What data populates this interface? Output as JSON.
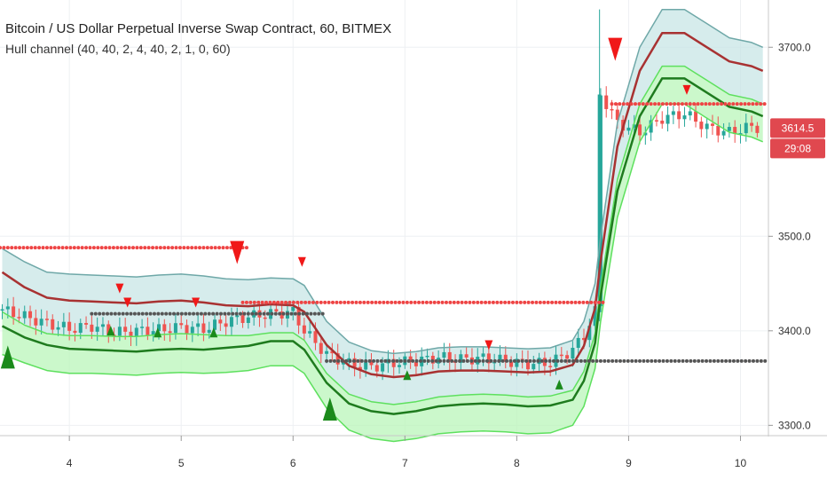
{
  "chart_data": {
    "type": "line",
    "title": "Bitcoin / US Dollar Perpetual Inverse Swap Contract, 60, BITMEX",
    "subtitle": "Hull channel (40, 40, 2, 4, 40, 2, 1, 0, 60)",
    "x_ticks": [
      "4",
      "5",
      "6",
      "7",
      "8",
      "9",
      "10"
    ],
    "y_ticks": [
      "3300.0",
      "3400.0",
      "3500.0",
      "3700.0"
    ],
    "ylim": [
      3290,
      3750
    ],
    "xlim": [
      3.38,
      10.25
    ],
    "last_price": "3614.5",
    "countdown": "29:08",
    "colors": {
      "bull": "#26a69a",
      "bear": "#ef5350",
      "upper_band": "#6fa8a8",
      "upper_fill": "#c8e6e6",
      "lower_band": "#5ee05e",
      "lower_fill": "#b9f5b9",
      "hull_up": "#1e7b1e",
      "hull_down": "#a83232",
      "signal_red": "#f01818",
      "signal_green": "#1b8a1b",
      "dots_red": "#ee4444",
      "dots_black": "#555555",
      "price_label": "#e0484f"
    },
    "x": [
      3.4,
      3.6,
      3.8,
      4.0,
      4.2,
      4.4,
      4.6,
      4.8,
      5.0,
      5.2,
      5.4,
      5.6,
      5.8,
      6.0,
      6.1,
      6.3,
      6.5,
      6.7,
      6.9,
      7.1,
      7.3,
      7.5,
      7.7,
      7.9,
      8.1,
      8.3,
      8.5,
      8.6,
      8.7,
      8.75,
      8.9,
      9.1,
      9.3,
      9.5,
      9.7,
      9.9,
      10.1,
      10.2
    ],
    "series": [
      {
        "name": "upper",
        "values": [
          3487,
          3473,
          3462,
          3460,
          3459,
          3458,
          3457,
          3459,
          3460,
          3458,
          3455,
          3454,
          3456,
          3455,
          3448,
          3410,
          3388,
          3379,
          3376,
          3378,
          3382,
          3383,
          3383,
          3382,
          3381,
          3382,
          3390,
          3410,
          3450,
          3500,
          3620,
          3700,
          3740,
          3740,
          3725,
          3710,
          3705,
          3700
        ]
      },
      {
        "name": "hull_upper",
        "values": [
          3462,
          3446,
          3435,
          3432,
          3431,
          3430,
          3429,
          3431,
          3432,
          3430,
          3427,
          3426,
          3428,
          3427,
          3420,
          3385,
          3363,
          3354,
          3351,
          3353,
          3357,
          3358,
          3358,
          3357,
          3356,
          3357,
          3364,
          3384,
          3424,
          3474,
          3595,
          3675,
          3715,
          3715,
          3700,
          3685,
          3680,
          3675
        ]
      },
      {
        "name": "middle",
        "values": [
          3420,
          3406,
          3397,
          3395,
          3395,
          3394,
          3394,
          3396,
          3397,
          3396,
          3395,
          3395,
          3398,
          3398,
          3390,
          3355,
          3333,
          3325,
          3322,
          3325,
          3330,
          3332,
          3333,
          3332,
          3330,
          3331,
          3337,
          3357,
          3397,
          3447,
          3560,
          3640,
          3680,
          3680,
          3665,
          3650,
          3645,
          3640
        ]
      },
      {
        "name": "hull_lower",
        "values": [
          3405,
          3393,
          3385,
          3381,
          3380,
          3379,
          3378,
          3380,
          3381,
          3380,
          3382,
          3384,
          3389,
          3389,
          3380,
          3345,
          3323,
          3315,
          3312,
          3315,
          3320,
          3322,
          3323,
          3322,
          3320,
          3321,
          3327,
          3347,
          3387,
          3437,
          3548,
          3627,
          3667,
          3667,
          3652,
          3637,
          3632,
          3627
        ]
      },
      {
        "name": "lower",
        "values": [
          3375,
          3366,
          3358,
          3355,
          3355,
          3354,
          3353,
          3355,
          3356,
          3355,
          3356,
          3358,
          3363,
          3363,
          3355,
          3318,
          3295,
          3286,
          3283,
          3286,
          3291,
          3293,
          3294,
          3293,
          3291,
          3292,
          3300,
          3320,
          3360,
          3410,
          3520,
          3600,
          3640,
          3640,
          3625,
          3610,
          3605,
          3600
        ]
      },
      {
        "name": "close",
        "values": [
          3422,
          3415,
          3408,
          3402,
          3405,
          3398,
          3400,
          3401,
          3404,
          3402,
          3410,
          3415,
          3418,
          3420,
          3400,
          3375,
          3365,
          3362,
          3366,
          3368,
          3372,
          3370,
          3371,
          3368,
          3365,
          3366,
          3380,
          3395,
          3420,
          3650,
          3620,
          3610,
          3625,
          3630,
          3615,
          3610,
          3616,
          3614.5
        ]
      }
    ],
    "levels": [
      {
        "name": "resistance-1",
        "y": 3488,
        "x_from": 3.38,
        "x_to": 5.6,
        "style": "red-dots"
      },
      {
        "name": "resistance-2",
        "y": 3430,
        "x_from": 5.55,
        "x_to": 8.8,
        "style": "red-dots"
      },
      {
        "name": "support-1",
        "y": 3418,
        "x_from": 4.2,
        "x_to": 6.3,
        "style": "dark-dots"
      },
      {
        "name": "support-2",
        "y": 3368,
        "x_from": 6.3,
        "x_to": 10.25,
        "style": "dark-dots"
      },
      {
        "name": "resistance-3",
        "y": 3640,
        "x_from": 8.85,
        "x_to": 10.25,
        "style": "red-dots"
      }
    ],
    "signals": [
      {
        "type": "sell",
        "x": 5.5,
        "y": 3495,
        "size": "large"
      },
      {
        "type": "sell",
        "x": 6.08,
        "y": 3478,
        "size": "small"
      },
      {
        "type": "sell",
        "x": 4.45,
        "y": 3450,
        "size": "small"
      },
      {
        "type": "sell",
        "x": 4.52,
        "y": 3435,
        "size": "small"
      },
      {
        "type": "sell",
        "x": 5.13,
        "y": 3435,
        "size": "small"
      },
      {
        "type": "sell",
        "x": 7.75,
        "y": 3390,
        "size": "small"
      },
      {
        "type": "sell",
        "x": 8.88,
        "y": 3710,
        "size": "large"
      },
      {
        "type": "sell",
        "x": 9.52,
        "y": 3660,
        "size": "small"
      },
      {
        "type": "buy",
        "x": 3.45,
        "y": 3360,
        "size": "large"
      },
      {
        "type": "buy",
        "x": 4.37,
        "y": 3395,
        "size": "small"
      },
      {
        "type": "buy",
        "x": 4.79,
        "y": 3393,
        "size": "small"
      },
      {
        "type": "buy",
        "x": 5.29,
        "y": 3393,
        "size": "small"
      },
      {
        "type": "buy",
        "x": 6.33,
        "y": 3305,
        "size": "large"
      },
      {
        "type": "buy",
        "x": 7.02,
        "y": 3348,
        "size": "small"
      },
      {
        "type": "buy",
        "x": 8.38,
        "y": 3338,
        "size": "small"
      }
    ]
  }
}
